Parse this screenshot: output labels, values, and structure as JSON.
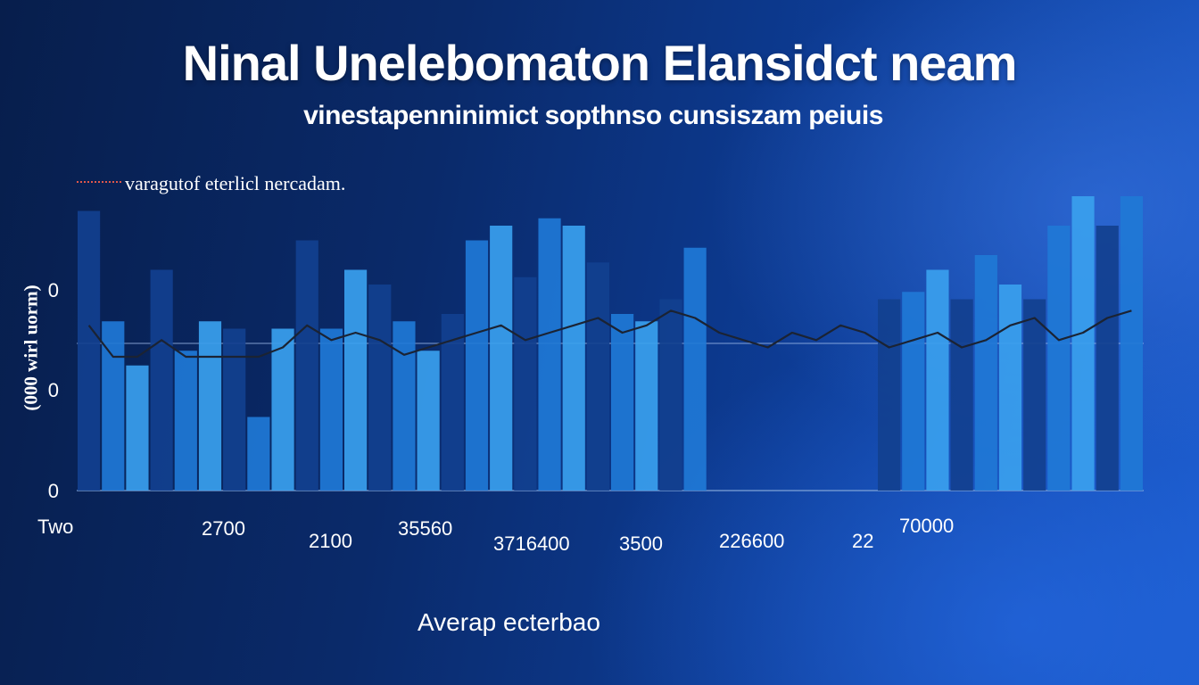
{
  "title": "Ninal Unelebomaton Elansidct neam",
  "subtitle": "vinestapenninimict sopthnso cunsiszam peiuis",
  "annotation": "varagutof eterlicl nercadam.",
  "colors": {
    "background": "#0a2a6a",
    "bar_dark": "#12408f",
    "bar_mid": "#1f78d6",
    "bar_light": "#3aa0ee",
    "line": "#1b2333"
  },
  "chart_data": {
    "type": "bar",
    "title": "Ninal Unelebomaton Elansidct neam",
    "subtitle": "vinestapenninimict sopthnso cunsiszam peiuis",
    "ylabel": "(000 wirl uorm)",
    "xlabel": "Averap ecterbao",
    "ylim": [
      0,
      2
    ],
    "y_ticks": [
      "0",
      "0",
      "0"
    ],
    "x_tick_labels": [
      "Two",
      "2700",
      "2100",
      "35560",
      "3716400",
      "3500",
      "226600",
      "22",
      "70000"
    ],
    "grid": true,
    "series": [
      {
        "values": [
          1.9,
          1.15,
          0.85,
          1.5,
          0.95,
          1.15,
          1.1,
          0.5,
          1.1,
          1.7,
          1.1,
          1.5,
          1.4,
          1.15,
          0.95,
          1.2,
          1.7,
          1.8,
          1.45,
          1.85,
          1.8,
          1.55,
          1.2,
          1.15,
          1.3,
          1.65,
          0,
          0,
          0,
          0,
          0,
          0,
          0,
          1.3,
          1.35,
          1.5,
          1.3,
          1.6,
          1.4,
          1.3,
          1.8,
          2.0,
          1.8,
          2.0
        ]
      },
      {
        "values": [
          0,
          0,
          0,
          0,
          0,
          0,
          0,
          0,
          0,
          0,
          0,
          0,
          0,
          0,
          0,
          0,
          0,
          0,
          0,
          0,
          0,
          0,
          0,
          0,
          0,
          0,
          0,
          0,
          0,
          0,
          0,
          0,
          0,
          0,
          0,
          0,
          0,
          0,
          0,
          0,
          0,
          0,
          0,
          0
        ]
      }
    ],
    "line_series": {
      "values": [
        1.85,
        1.55,
        1.5,
        1.75,
        1.55,
        1.6,
        1.45,
        1.6,
        1.7,
        1.85,
        1.75,
        1.8,
        1.75,
        1.65,
        1.7,
        1.75,
        1.8,
        1.85,
        1.75,
        1.8,
        1.85,
        1.9,
        1.8,
        1.85,
        1.95,
        1.9,
        1.8,
        1.75,
        1.7,
        1.8,
        1.75,
        1.85,
        1.8,
        1.7,
        1.75,
        1.8,
        1.7,
        1.75,
        1.85,
        1.9,
        1.75,
        1.8,
        1.9,
        1.95
      ]
    }
  }
}
